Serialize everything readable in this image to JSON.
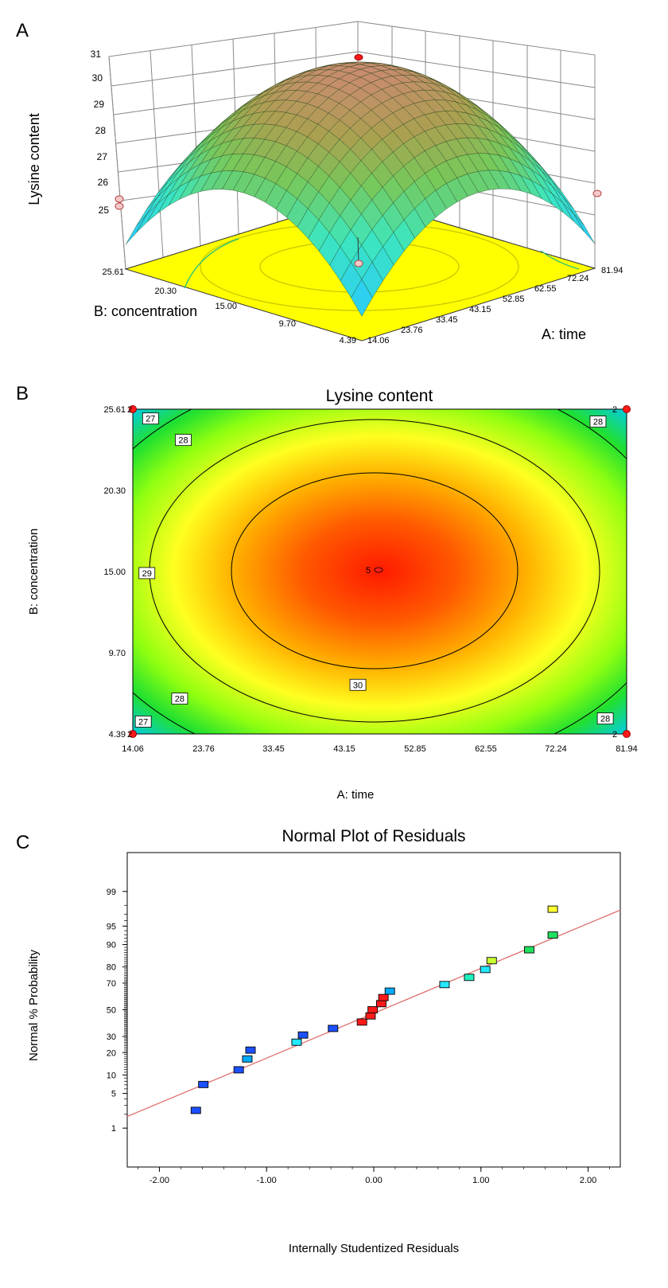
{
  "colors": {
    "surface_high": "#ff2a2a",
    "surface_mid": "#ffff40",
    "surface_low": "#30c8ff",
    "floor": "#ffff00",
    "fit_line": "#e07070",
    "design_point": "#ff1a1a"
  },
  "chart_data": [
    {
      "panel": "A",
      "type": "surface",
      "title": "",
      "zlabel": "Lysine content",
      "xlabel": "A: time",
      "ylabel": "B: concentration",
      "x_ticks": [
        "14.06",
        "23.76",
        "33.45",
        "43.15",
        "52.85",
        "62.55",
        "72.24",
        "81.94"
      ],
      "y_ticks": [
        "4.39",
        "9.70",
        "15.00",
        "20.30",
        "25.61"
      ],
      "z_ticks": [
        "25",
        "26",
        "27",
        "28",
        "29",
        "30",
        "31"
      ],
      "xlim": [
        14.06,
        81.94
      ],
      "ylim": [
        4.39,
        25.61
      ],
      "zlim": [
        25,
        31
      ],
      "peak": {
        "x": 48,
        "y": 15.0,
        "z": 30.7
      },
      "corner_values": [
        25.7,
        25.7,
        25.7,
        25.7
      ]
    },
    {
      "panel": "B",
      "type": "contour",
      "title": "Lysine content",
      "xlabel": "A: time",
      "ylabel": "B: concentration",
      "x_ticks": [
        "14.06",
        "23.76",
        "33.45",
        "43.15",
        "52.85",
        "62.55",
        "72.24",
        "81.94"
      ],
      "y_ticks": [
        "4.39",
        "9.70",
        "15.00",
        "20.30",
        "25.61"
      ],
      "xlim": [
        14.06,
        81.94
      ],
      "ylim": [
        4.39,
        25.61
      ],
      "contour_levels": [
        27,
        28,
        29,
        30
      ],
      "contour_labels": [
        {
          "text": "27",
          "x": 16.5,
          "y": 25.0
        },
        {
          "text": "28",
          "x": 21.0,
          "y": 23.6
        },
        {
          "text": "28",
          "x": 78.0,
          "y": 24.8
        },
        {
          "text": "29",
          "x": 16.0,
          "y": 14.9
        },
        {
          "text": "30",
          "x": 45.0,
          "y": 7.6
        },
        {
          "text": "28",
          "x": 20.5,
          "y": 6.7
        },
        {
          "text": "27",
          "x": 15.5,
          "y": 5.2
        },
        {
          "text": "28",
          "x": 79.0,
          "y": 5.4
        }
      ],
      "center_point": {
        "label": "5",
        "x": 48.0,
        "y": 15.0
      },
      "corner_points": [
        {
          "label": "2",
          "x": 14.06,
          "y": 25.61
        },
        {
          "label": "2",
          "x": 81.94,
          "y": 25.61
        },
        {
          "label": "2",
          "x": 14.06,
          "y": 4.39
        },
        {
          "label": "2",
          "x": 81.94,
          "y": 4.39
        }
      ]
    },
    {
      "panel": "C",
      "type": "scatter",
      "title": "Normal Plot of Residuals",
      "xlabel": "Internally Studentized Residuals",
      "ylabel": "Normal % Probability",
      "x_ticks": [
        "-2.00",
        "-1.00",
        "0.00",
        "1.00",
        "2.00"
      ],
      "y_ticks": [
        "1",
        "5",
        "10",
        "20",
        "30",
        "50",
        "70",
        "80",
        "90",
        "95",
        "99"
      ],
      "xlim": [
        -2.3,
        2.3
      ],
      "ylim_percent": [
        0.1,
        99.9
      ],
      "fit_line": {
        "x1": -2.3,
        "p1": 1.8,
        "x2": 2.3,
        "p2": 97.5
      },
      "points": [
        {
          "x": -1.66,
          "p": 2.4,
          "color": "#1c50ff"
        },
        {
          "x": -1.59,
          "p": 7.1,
          "color": "#1c50ff"
        },
        {
          "x": -1.26,
          "p": 11.9,
          "color": "#1c50ff"
        },
        {
          "x": -1.18,
          "p": 16.7,
          "color": "#00aaff"
        },
        {
          "x": -1.15,
          "p": 21.4,
          "color": "#1c50ff"
        },
        {
          "x": -0.72,
          "p": 26.2,
          "color": "#22e8ff"
        },
        {
          "x": -0.66,
          "p": 31.0,
          "color": "#1c50ff"
        },
        {
          "x": -0.38,
          "p": 35.7,
          "color": "#1c50ff"
        },
        {
          "x": -0.11,
          "p": 40.5,
          "color": "#ff1a1a"
        },
        {
          "x": -0.03,
          "p": 45.2,
          "color": "#ff1a1a"
        },
        {
          "x": -0.01,
          "p": 50.0,
          "color": "#ff1a1a"
        },
        {
          "x": 0.07,
          "p": 54.8,
          "color": "#ff1a1a"
        },
        {
          "x": 0.09,
          "p": 59.5,
          "color": "#ff1a1a"
        },
        {
          "x": 0.15,
          "p": 64.3,
          "color": "#00aaff"
        },
        {
          "x": 0.66,
          "p": 69.0,
          "color": "#22e8ff"
        },
        {
          "x": 0.89,
          "p": 73.8,
          "color": "#20f0c0"
        },
        {
          "x": 1.04,
          "p": 78.6,
          "color": "#22e8ff"
        },
        {
          "x": 1.1,
          "p": 83.3,
          "color": "#c8ff30"
        },
        {
          "x": 1.45,
          "p": 88.1,
          "color": "#20e060"
        },
        {
          "x": 1.67,
          "p": 92.9,
          "color": "#20e060"
        },
        {
          "x": 1.67,
          "p": 97.6,
          "color": "#ffff30"
        }
      ]
    }
  ]
}
